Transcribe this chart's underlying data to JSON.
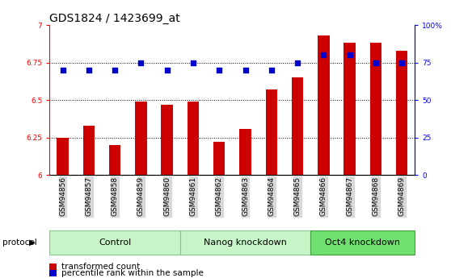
{
  "title": "GDS1824 / 1423699_at",
  "samples": [
    "GSM94856",
    "GSM94857",
    "GSM94858",
    "GSM94859",
    "GSM94860",
    "GSM94861",
    "GSM94862",
    "GSM94863",
    "GSM94864",
    "GSM94865",
    "GSM94866",
    "GSM94867",
    "GSM94868",
    "GSM94869"
  ],
  "transformed_count": [
    6.25,
    6.33,
    6.2,
    6.49,
    6.47,
    6.49,
    6.22,
    6.31,
    6.57,
    6.65,
    6.93,
    6.88,
    6.88,
    6.83
  ],
  "percentile_rank": [
    70,
    70,
    70,
    75,
    70,
    75,
    70,
    70,
    70,
    75,
    80,
    80,
    75,
    75
  ],
  "ylim_left": [
    6.0,
    7.0
  ],
  "ylim_right": [
    0,
    100
  ],
  "yticks_left": [
    6.0,
    6.25,
    6.5,
    6.75,
    7.0
  ],
  "ytick_labels_left": [
    "6",
    "6.25",
    "6.5",
    "6.75",
    "7"
  ],
  "yticks_right": [
    0,
    25,
    50,
    75,
    100
  ],
  "ytick_labels_right": [
    "0",
    "25",
    "50",
    "75",
    "100%"
  ],
  "bar_color": "#cc0000",
  "dot_color": "#0000cc",
  "dot_size": 15,
  "bar_width": 0.45,
  "xlim": [
    -0.5,
    13.5
  ],
  "groups": [
    {
      "label": "Control",
      "start": 0,
      "end": 4,
      "color": "#c8f5c8"
    },
    {
      "label": "Nanog knockdown",
      "start": 5,
      "end": 9,
      "color": "#c8f5c8"
    },
    {
      "label": "Oct4 knockdown",
      "start": 10,
      "end": 13,
      "color": "#70e070"
    }
  ],
  "tick_bg_color": "#d8d8d8",
  "protocol_label": "protocol",
  "proto_groups": [
    {
      "label": "Control",
      "start": 0,
      "end": 5,
      "color": "#c8f5c8",
      "border": "#88c888"
    },
    {
      "label": "Nanog knockdown",
      "start": 5,
      "end": 10,
      "color": "#c8f5c8",
      "border": "#88c888"
    },
    {
      "label": "Oct4 knockdown",
      "start": 10,
      "end": 14,
      "color": "#70e070",
      "border": "#40a040"
    }
  ],
  "legend_items": [
    {
      "label": "transformed count",
      "color": "#cc0000"
    },
    {
      "label": "percentile rank within the sample",
      "color": "#0000cc"
    }
  ],
  "title_fontsize": 10,
  "tick_fontsize": 6.5,
  "label_fontsize": 7.5,
  "proto_fontsize": 8
}
